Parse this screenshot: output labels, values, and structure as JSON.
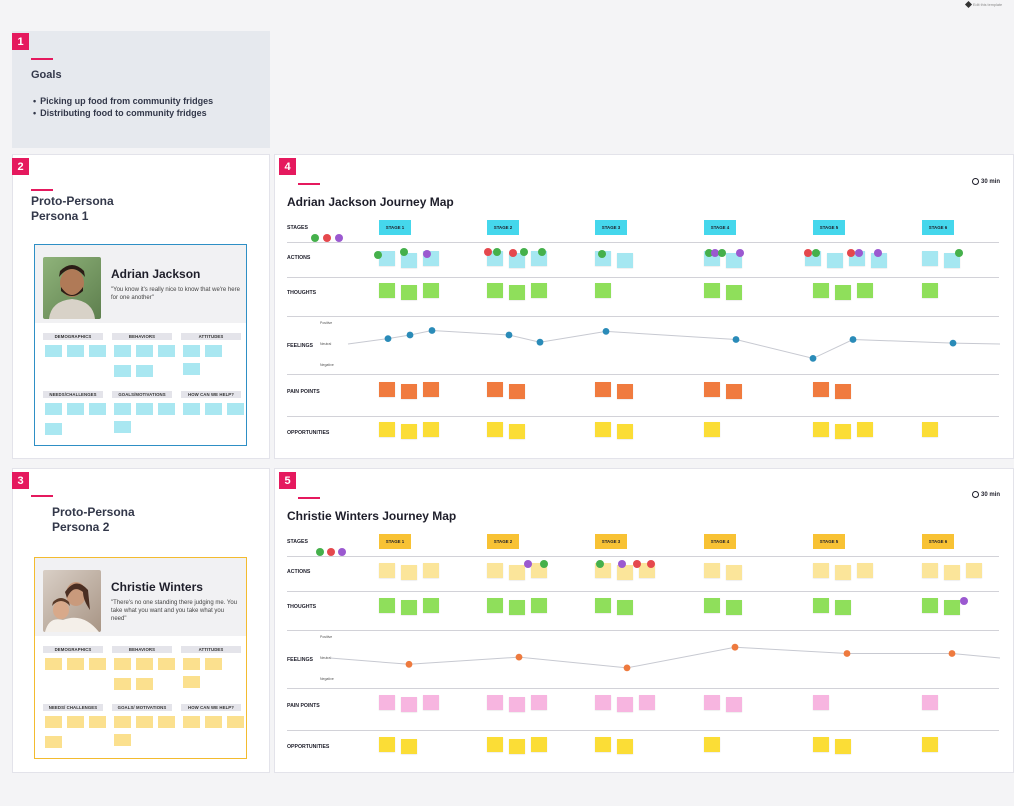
{
  "corner_note": {
    "icon": "template-icon",
    "text": "Edit this template"
  },
  "frames": {
    "f1": {
      "num": "1",
      "title": "Goals"
    },
    "f2": {
      "num": "2",
      "title_line1": "Proto-Persona",
      "title_line2": "Persona 1"
    },
    "f3": {
      "num": "3",
      "title_line1": "Proto-Persona",
      "title_line2": "Persona 2"
    },
    "f4": {
      "num": "4",
      "title": "Adrian Jackson Journey Map",
      "timer": "30 min"
    },
    "f5": {
      "num": "5",
      "title": "Christie Winters Journey Map",
      "timer": "30 min"
    }
  },
  "goals": [
    "Picking up food from community fridges",
    "Distributing food to community fridges"
  ],
  "personas": [
    {
      "name": "Adrian Jackson",
      "quote": "\"You know it's really nice to know that we're here for one another\"",
      "accent": "#2e8fc5",
      "sticky": "#a9e7f1",
      "categories": [
        "DEMOGRAPHICS",
        "BEHAVIORS",
        "ATTITUDES",
        "NEEDS/CHALLENGES",
        "GOALS/MOTIVATIONS",
        "HOW CAN WE HELP?"
      ]
    },
    {
      "name": "Christie Winters",
      "quote": "\"There's no one standing there judging me. You take what you want and you take what you need\"",
      "accent": "#f3bb2f",
      "sticky": "#fbe08e",
      "categories": [
        "DEMOGRAPHICS",
        "BEHAVIORS",
        "ATTITUDES",
        "NEEDS/ CHALLENGES",
        "GOALS/ MOTIVATIONS",
        "HOW CAN WE HELP?"
      ]
    }
  ],
  "journey": {
    "row_labels": [
      "STAGES",
      "ACTIONS",
      "THOUGHTS",
      "FEELINGS",
      "PAIN POINTS",
      "OPPORTUNITIES"
    ],
    "feel_axis": [
      "Positive",
      "Neutral",
      "Negative"
    ],
    "stages": [
      "STAGE 1",
      "STAGE 2",
      "STAGE 3",
      "STAGE 4",
      "STAGE 5",
      "STAGE 6"
    ],
    "colors": {
      "stage_cyan": "#45d7ec",
      "stage_orange": "#f8c234",
      "action_cyan": "#a5e7f1",
      "action_yellow": "#fbe59a",
      "thought_green": "#8fdf5b",
      "pain_orange": "#f07b3f",
      "pain_pink": "#f7b5e0",
      "opp_yellow": "#fbdd36",
      "feel_blue": "#2a8bb8",
      "feel_orange": "#ee7a3e"
    },
    "adrian_feelings": [
      0.3,
      0.5,
      0.75,
      0.5,
      0.1,
      0.7,
      0.25,
      -0.8,
      0.25,
      0.05
    ],
    "christie_feelings": [
      -0.35,
      0.05,
      -0.55,
      0.6,
      0.25,
      0.25
    ]
  }
}
